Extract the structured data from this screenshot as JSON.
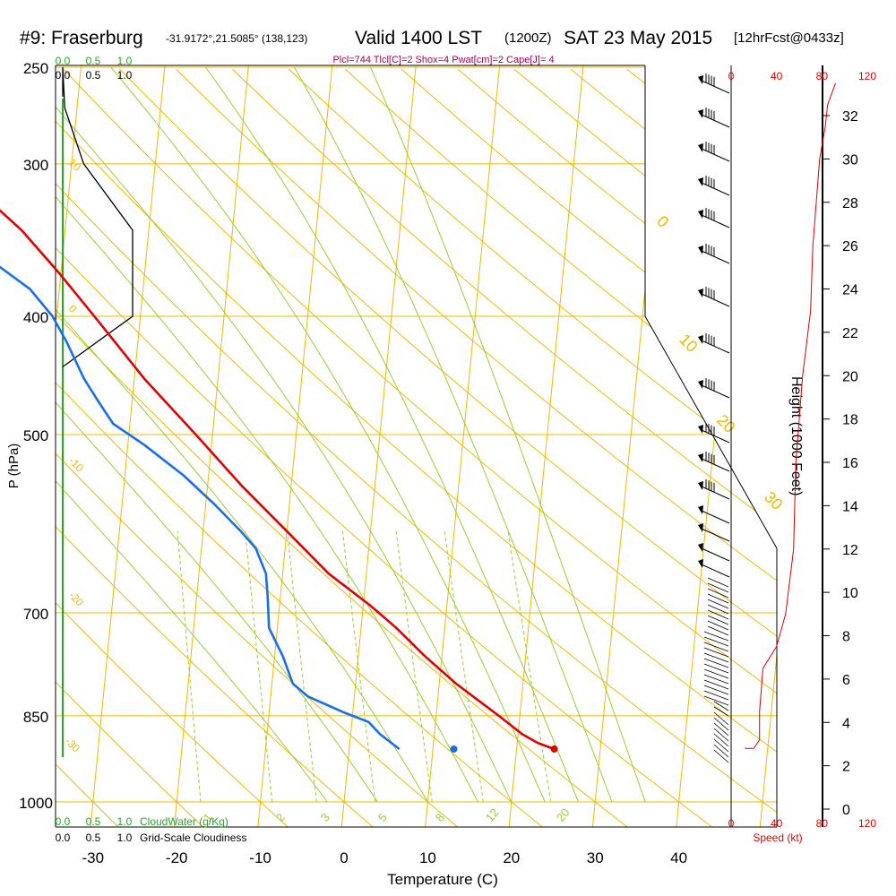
{
  "header": {
    "station": "#9: Fraserburg",
    "coords": "-31.9172°,21.5085° (138,123)",
    "valid": "Valid 1400 LST",
    "utc": "(1200Z)",
    "date": "SAT 23 May 2015",
    "forecast": "[12hrFcst@0433z]",
    "indices": "Plcl=744 Tlcl[C]=2 Shox=4 Pwat[cm]=2 Cape[J]= 4"
  },
  "colors": {
    "temperature": "#e00000",
    "dewpoint": "#1a6ee8",
    "isotherm": "#f0b800",
    "dry_adiabat": "#f0b800",
    "moist_adiabat": "#9acd32",
    "mixing_ratio": "#9acd32",
    "cloudwater": "#22aa22",
    "speed": "#e00000"
  },
  "chart_data": [
    {
      "type": "line",
      "subtype": "skew-t",
      "xlabel": "Temperature (C)",
      "ylabel": "P (hPa)",
      "xticks": [
        -30,
        -20,
        -10,
        0,
        10,
        20,
        30,
        40
      ],
      "yticks": [
        250,
        300,
        400,
        500,
        700,
        850,
        1000
      ],
      "xlim": [
        -33,
        36
      ],
      "ylim": [
        1000,
        250
      ],
      "pressure_scale": "log",
      "series": [],
      "temperature": {
        "p": [
          905,
          895,
          880,
          850,
          800,
          760,
          720,
          690,
          650,
          600,
          550,
          500,
          450,
          400,
          370,
          340,
          320,
          300,
          280,
          262
        ],
        "t": [
          24.5,
          22.5,
          20.5,
          17.5,
          12.0,
          8.0,
          4.2,
          0.8,
          -4.5,
          -10.0,
          -16.0,
          -22.0,
          -28.8,
          -35.5,
          -40.0,
          -45.2,
          -49.8,
          -54.5,
          -59.0,
          -62.3
        ]
      },
      "dewpoint": {
        "p": [
          905,
          895,
          880,
          860,
          845,
          820,
          800,
          760,
          720,
          680,
          650,
          620,
          600,
          570,
          540,
          510,
          490,
          470,
          450,
          420,
          400,
          380,
          360,
          340,
          320,
          300,
          285,
          262
        ],
        "t": [
          6.0,
          5.0,
          3.5,
          2.0,
          -1.0,
          -5.5,
          -7.5,
          -9.0,
          -11.0,
          -11.5,
          -12.0,
          -13.5,
          -15.5,
          -19.0,
          -23.0,
          -28.0,
          -32.0,
          -34.0,
          -36.0,
          -38.5,
          -40.5,
          -43.5,
          -48.5,
          -54.0,
          -58.0,
          -62.0,
          -65.0,
          -68.5
        ]
      },
      "dry_adiabat_labels": [
        10,
        0,
        -10,
        -20,
        -30,
        0,
        10,
        20,
        30
      ],
      "moist_adiabat_labels": [
        1,
        2,
        3,
        5,
        8,
        12,
        20
      ],
      "parcel_surface_temp": 24.5,
      "parcel_surface_dewpoint": 12.5
    },
    {
      "type": "line",
      "name": "Height (1000 Feet)",
      "ylabel": "Height (1000 Feet)",
      "yticks": [
        0,
        2,
        4,
        6,
        8,
        10,
        12,
        14,
        16,
        18,
        20,
        22,
        24,
        26,
        28,
        30,
        32
      ],
      "ylim": [
        0,
        34
      ]
    },
    {
      "type": "line",
      "name": "Speed (kt)",
      "xlabel": "Speed (kt)",
      "xticks": [
        0,
        40,
        80,
        120
      ],
      "xlim": [
        0,
        120
      ],
      "height_kft": [
        2.8,
        3.2,
        4.5,
        6.5,
        7.5,
        9,
        12,
        16,
        20,
        23,
        26,
        28,
        30,
        31.5,
        32.5,
        33.5
      ],
      "speed_kt": [
        20,
        25,
        25,
        28,
        40,
        48,
        55,
        57,
        63,
        70,
        72,
        75,
        78,
        83,
        85,
        92
      ]
    },
    {
      "type": "line",
      "name": "CloudWater (g/Kg)",
      "xticks": [
        0,
        0.5,
        1.0
      ],
      "cloudiness_xticks": [
        0,
        0.5,
        1.0
      ],
      "cloudiness_label": "Grid-Scale Cloudiness",
      "cloudiness": {
        "p": [
          250,
          270,
          300,
          340,
          400,
          440
        ],
        "value": [
          0,
          0.03,
          0.3,
          1.0,
          1.0,
          0
        ]
      }
    }
  ]
}
